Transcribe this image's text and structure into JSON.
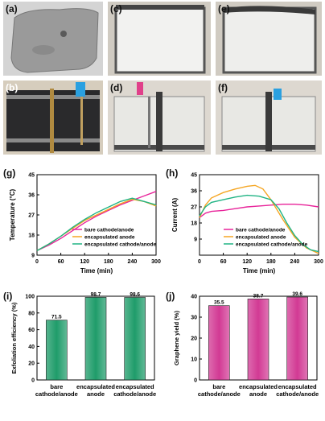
{
  "photos": [
    {
      "label": "(a)",
      "bg": "#d2d2d2",
      "kind": "slab"
    },
    {
      "label": "(c)",
      "bg": "#c9c5bd",
      "kind": "tank-white"
    },
    {
      "label": "(e)",
      "bg": "#c9c5bd",
      "kind": "tank-white2"
    },
    {
      "label": "(b)",
      "bg": "#d8d0c0",
      "kind": "cell-dark"
    },
    {
      "label": "(d)",
      "bg": "#dcd7cf",
      "kind": "cell-clear"
    },
    {
      "label": "(f)",
      "bg": "#dcd7cf",
      "kind": "cell-clear2"
    }
  ],
  "colors": {
    "bare": "#e8249a",
    "enc_anode": "#f5a623",
    "enc_both": "#20b484",
    "bar_green": "#1f9c6a",
    "bar_pink": "#d23a94"
  },
  "chart_data": [
    {
      "panel": "(g)",
      "type": "line",
      "xlabel": "Time (min)",
      "ylabel": "Temperature (°C)",
      "xlim": [
        0,
        300
      ],
      "ylim": [
        9,
        45
      ],
      "xticks": [
        0,
        60,
        120,
        180,
        240,
        300
      ],
      "yticks": [
        9,
        18,
        27,
        36,
        45
      ],
      "legend": "bottom-right",
      "series": [
        {
          "name": "bare cathode/anode",
          "color": "#e8249a",
          "x": [
            0,
            30,
            60,
            90,
            120,
            150,
            180,
            210,
            240,
            270,
            300
          ],
          "y": [
            11,
            13.5,
            16.5,
            20,
            23.5,
            26.5,
            29,
            31.5,
            33.5,
            35.5,
            37.5
          ]
        },
        {
          "name": "encapsulated anode",
          "color": "#f5a623",
          "x": [
            0,
            30,
            60,
            90,
            120,
            150,
            180,
            210,
            240,
            270,
            300
          ],
          "y": [
            11,
            14,
            17.5,
            21,
            24.5,
            27,
            29.5,
            32,
            34,
            33,
            31
          ]
        },
        {
          "name": "encapsulated cathode/anode",
          "color": "#20b484",
          "x": [
            0,
            30,
            60,
            90,
            120,
            150,
            180,
            210,
            240,
            260,
            280,
            300
          ],
          "y": [
            11,
            14,
            17.5,
            21.5,
            25,
            28,
            30.5,
            33,
            34.5,
            33.5,
            32.5,
            31.5
          ]
        }
      ]
    },
    {
      "panel": "(h)",
      "type": "line",
      "xlabel": "Time (min)",
      "ylabel": "Current (A)",
      "xlim": [
        0,
        300
      ],
      "ylim": [
        0,
        45
      ],
      "xticks": [
        0,
        60,
        120,
        180,
        240,
        300
      ],
      "yticks": [
        9,
        18,
        27,
        36,
        45
      ],
      "legend": "bottom-center",
      "series": [
        {
          "name": "bare cathode/anode",
          "color": "#e8249a",
          "x": [
            0,
            15,
            30,
            60,
            90,
            120,
            150,
            180,
            210,
            240,
            270,
            300
          ],
          "y": [
            21,
            23.5,
            24.5,
            25,
            26,
            27,
            27.5,
            28,
            28.5,
            28.5,
            28,
            27
          ]
        },
        {
          "name": "encapsulated anode",
          "color": "#f5a623",
          "x": [
            0,
            15,
            30,
            60,
            90,
            120,
            140,
            160,
            180,
            210,
            240,
            270,
            290,
            300
          ],
          "y": [
            21,
            28,
            32,
            35,
            37,
            38.5,
            39,
            37,
            31,
            20,
            10,
            4,
            2,
            1
          ]
        },
        {
          "name": "encapsulated cathode/anode",
          "color": "#20b484",
          "x": [
            0,
            15,
            30,
            60,
            90,
            120,
            150,
            180,
            200,
            220,
            240,
            260,
            280,
            300
          ],
          "y": [
            22,
            27,
            29.5,
            31,
            32.5,
            33.5,
            33,
            31,
            26,
            18,
            11,
            6,
            3,
            2
          ]
        }
      ]
    },
    {
      "panel": "(i)",
      "type": "bar",
      "ylabel": "Exfoliation efficiency (%)",
      "categories": [
        "bare\ncathode/anode",
        "encapsulated\nanode",
        "encapsulated\ncathode/anode"
      ],
      "values": [
        71.5,
        98.7,
        98.6
      ],
      "labels": [
        "71.5",
        "98.7",
        "98.6"
      ],
      "ylim": [
        0,
        100
      ],
      "yticks": [
        0,
        20,
        40,
        60,
        80,
        100
      ],
      "color": "#1f9c6a"
    },
    {
      "panel": "(j)",
      "type": "bar",
      "ylabel": "Graphene yield (%)",
      "categories": [
        "bare\ncathode/anode",
        "encapsulated\nanode",
        "encapsulated\ncathode/anode"
      ],
      "values": [
        35.5,
        38.7,
        39.6
      ],
      "labels": [
        "35.5",
        "38.7",
        "39.6"
      ],
      "ylim": [
        0,
        40
      ],
      "yticks": [
        0,
        10,
        20,
        30,
        40
      ],
      "color": "#d23a94"
    }
  ]
}
